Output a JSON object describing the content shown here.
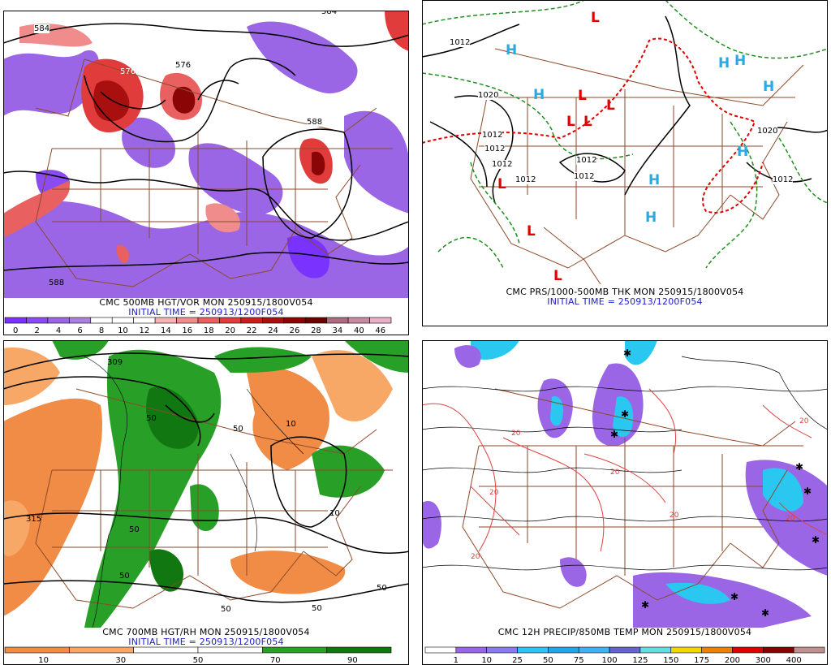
{
  "panels": [
    {
      "title": "CMC 500MB HGT/VOR MON 250915/1800V054",
      "init": "INITIAL TIME = 250913/1200F054",
      "labels": [
        "584",
        "584",
        "576",
        "576",
        "588",
        "588"
      ],
      "scale_labels": [
        "0",
        "2",
        "4",
        "6",
        "8",
        "10",
        "12",
        "14",
        "16",
        "18",
        "20",
        "22",
        "24",
        "26",
        "28",
        "34",
        "40",
        "46"
      ],
      "scale_colors": [
        "#7a33ff",
        "#8a4cf0",
        "#9a66e6",
        "#ab80e0",
        "#ffffff",
        "#ffffff",
        "#ffffff",
        "#f7b3b3",
        "#f08c8c",
        "#e86060",
        "#e03c3c",
        "#c81e1e",
        "#a81010",
        "#8a0606",
        "#6e0000",
        "#b06a80",
        "#c88aa0",
        "#e8b0c8"
      ]
    },
    {
      "title": "CMC PRS/1000-500MB THK MON 250915/1800V054",
      "init": "INITIAL TIME = 250913/1200F054",
      "labels": [
        "1012",
        "1020",
        "1012",
        "1012",
        "1012",
        "1012",
        "1012",
        "1012",
        "1020",
        "1012"
      ],
      "highs": [
        "H",
        "H",
        "H",
        "H",
        "H",
        "H",
        "H",
        "H"
      ],
      "lows": [
        "L",
        "L",
        "L",
        "L",
        "L",
        "L",
        "L",
        "L"
      ]
    },
    {
      "title": "CMC 700MB HGT/RH MON 250915/1800V054",
      "init": "INITIAL TIME = 250913/1200F054",
      "labels": [
        "309",
        "315",
        "50",
        "50",
        "10",
        "50",
        "50",
        "10",
        "50",
        "50",
        "50"
      ],
      "scale_labels": [
        "10",
        "30",
        "50",
        "70",
        "90"
      ],
      "scale_colors": [
        "#f08c46",
        "#f7a866",
        "#ffffff",
        "#ffffff",
        "#28a028",
        "#117711"
      ]
    },
    {
      "title": "CMC 12H PRECIP/850MB TEMP MON 250915/1800V054",
      "init": "",
      "labels": [
        "20",
        "20",
        "20",
        "20",
        "20",
        "20",
        "20"
      ],
      "scale_labels": [
        "1",
        "10",
        "25",
        "50",
        "75",
        "100",
        "125",
        "150",
        "175",
        "200",
        "300",
        "400"
      ],
      "scale_colors": [
        "#ffffff",
        "#9a66e6",
        "#8a7cf0",
        "#2ac8f0",
        "#1ea8e8",
        "#3cb4f0",
        "#6464d0",
        "#60e0e0",
        "#f0d800",
        "#f08000",
        "#e00000",
        "#8a0000",
        "#c09090"
      ]
    }
  ]
}
